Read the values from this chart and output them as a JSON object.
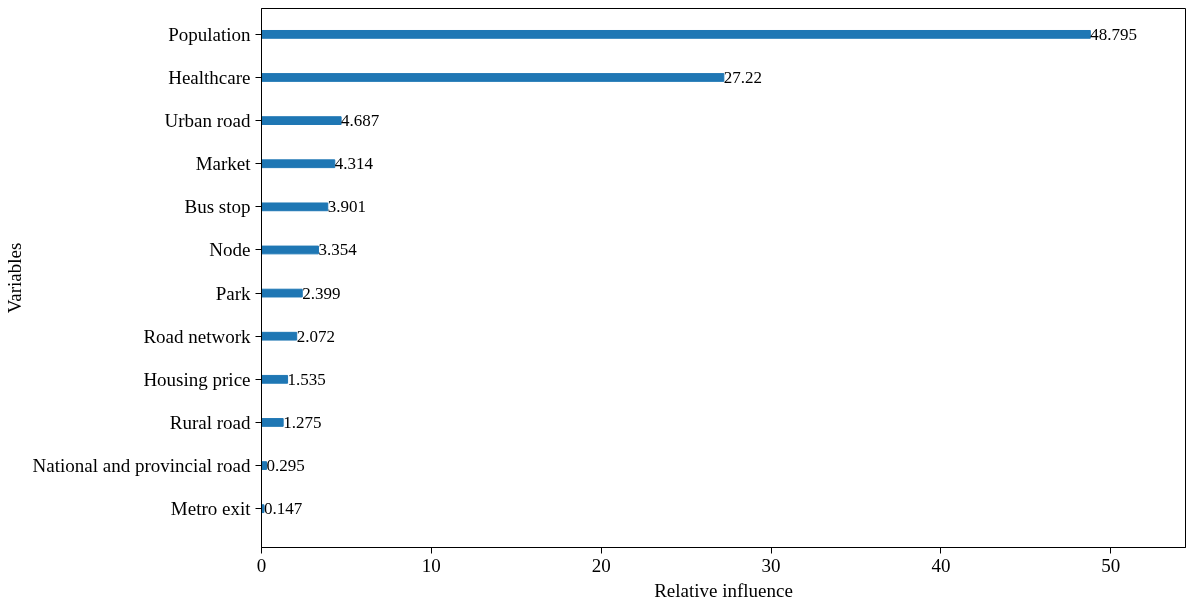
{
  "chart_data": {
    "type": "bar",
    "orientation": "horizontal",
    "xlabel": "Relative influence",
    "ylabel": "Variables",
    "categories": [
      "Population",
      "Healthcare",
      "Urban road",
      "Market",
      "Bus stop",
      "Node",
      "Park",
      "Road network",
      "Housing price",
      "Rural road",
      "National and provincial road",
      "Metro exit"
    ],
    "values": [
      48.795,
      27.22,
      4.687,
      4.314,
      3.901,
      3.354,
      2.399,
      2.072,
      1.535,
      1.275,
      0.295,
      0.147
    ],
    "color": "#1f77b4",
    "xlim": [
      0,
      54.4
    ],
    "xticks": [
      0,
      10,
      20,
      30,
      40,
      50
    ],
    "data_labels": true,
    "grid": false
  }
}
